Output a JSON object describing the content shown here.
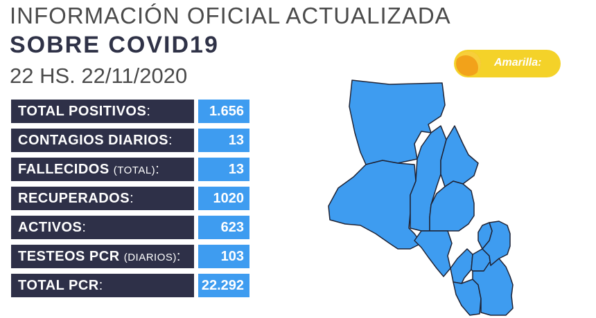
{
  "header": {
    "line1": "INFORMACIÓN OFICIAL ACTUALIZADA",
    "line2": "SOBRE COVID19",
    "line3": "22 HS. 22/11/2020"
  },
  "stats": [
    {
      "label": "TOTAL POSITIVOS",
      "note": "",
      "value": "1.656"
    },
    {
      "label": "CONTAGIOS DIARIOS",
      "note": "",
      "value": "13"
    },
    {
      "label": "FALLECIDOS",
      "note": "(TOTAL)",
      "value": "13"
    },
    {
      "label": "RECUPERADOS",
      "note": "",
      "value": "1020"
    },
    {
      "label": "ACTIVOS",
      "note": "",
      "value": "623"
    },
    {
      "label": "TESTEOS PCR",
      "note": "(DIARIOS)",
      "value": "103"
    },
    {
      "label": "TOTAL PCR",
      "note": "",
      "value": "22.292"
    }
  ],
  "alert": {
    "label": "Amarilla:",
    "color": "#f4d229"
  },
  "colors": {
    "label_bg": "#2e3048",
    "value_bg": "#3e9cf0",
    "map_fill": "#3e9cf0",
    "map_stroke": "#1f2233"
  }
}
